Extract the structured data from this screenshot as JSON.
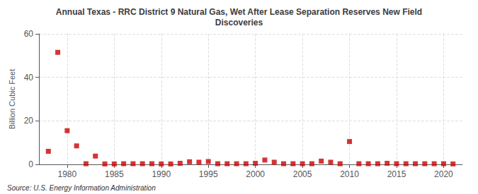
{
  "chart_data": {
    "type": "scatter",
    "title": "Annual Texas - RRC District 9 Natural Gas, Wet After Lease Separation Reserves New Field\nDiscoveries",
    "ylabel": "Billion Cubic Feet",
    "annotations": [
      "Source: U.S. Energy Information Administration"
    ],
    "x": [
      1978,
      1979,
      1980,
      1981,
      1982,
      1983,
      1984,
      1985,
      1986,
      1987,
      1988,
      1989,
      1990,
      1991,
      1992,
      1993,
      1994,
      1995,
      1996,
      1997,
      1998,
      1999,
      2000,
      2001,
      2002,
      2003,
      2004,
      2005,
      2006,
      2007,
      2008,
      2009,
      2010,
      2011,
      2012,
      2013,
      2014,
      2015,
      2016,
      2017,
      2018,
      2019,
      2020,
      2021
    ],
    "values": [
      6.0,
      51.5,
      15.5,
      8.5,
      0.3,
      3.8,
      0.2,
      0.2,
      0.3,
      0.3,
      0.3,
      0.3,
      0.2,
      0.2,
      0.5,
      1.2,
      1.0,
      1.3,
      0.3,
      0.3,
      0.3,
      0.3,
      0.5,
      2.0,
      1.0,
      0.3,
      0.3,
      0.3,
      0.3,
      1.5,
      1.0,
      0.3,
      10.5,
      0.3,
      0.3,
      0.3,
      0.5,
      0.3,
      0.3,
      0.3,
      0.3,
      0.3,
      0.3,
      0.2
    ],
    "color": "#cc0000",
    "marker": "square",
    "xlim": [
      1977,
      2022
    ],
    "xticks": [
      1980,
      1985,
      1990,
      1995,
      2000,
      2005,
      2010,
      2015,
      2020
    ],
    "ylim": [
      0,
      60
    ],
    "yticks": [
      0,
      20,
      40,
      60
    ],
    "grid": true
  }
}
